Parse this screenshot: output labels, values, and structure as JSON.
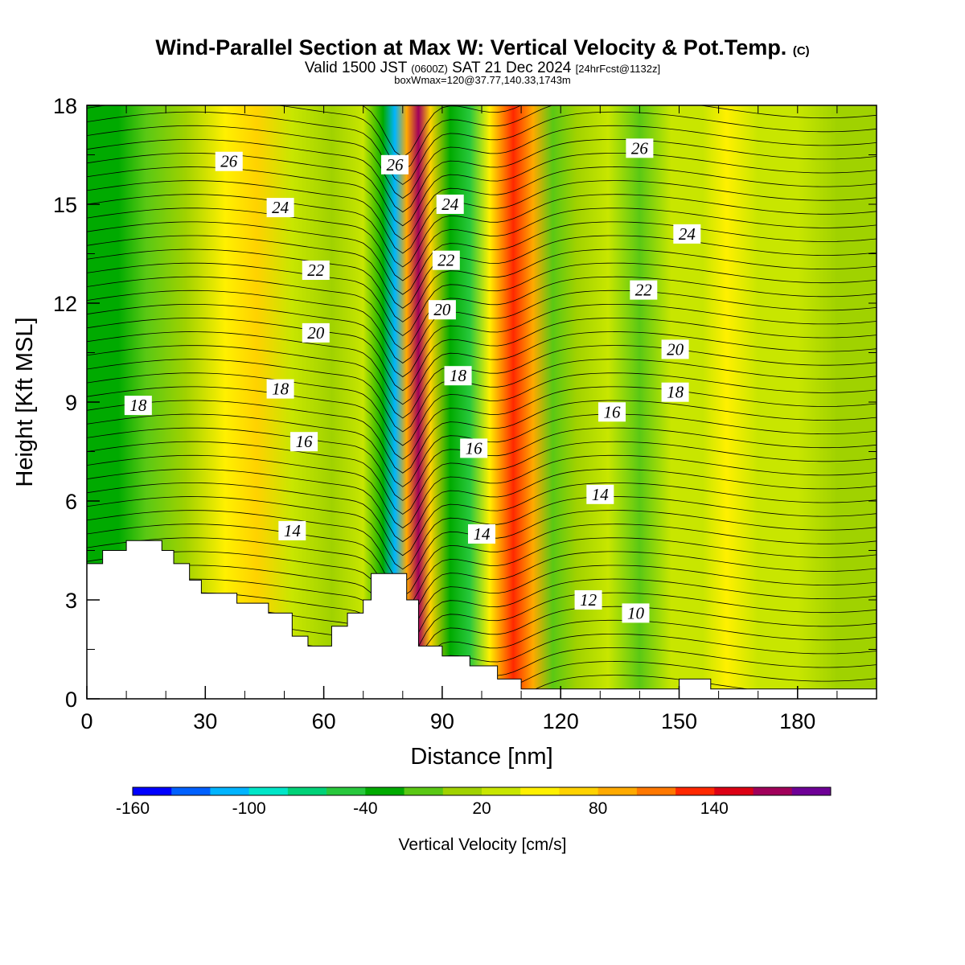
{
  "header": {
    "title": "Wind-Parallel Section at Max W: Vertical Velocity & Pot.Temp.",
    "copyright": "(C)",
    "valid_prefix": "Valid 1500 JST",
    "valid_utc": "(0600Z)",
    "valid_date": "SAT 21 Dec 2024",
    "forecast": "[24hrFcst@1132z]",
    "box_info": "boxWmax=120@37.77,140.33,1743m"
  },
  "chart_data": {
    "type": "heatmap",
    "xlabel": "Distance [nm]",
    "ylabel": "Height [Kft MSL]",
    "xlim": [
      0,
      200
    ],
    "ylim": [
      0,
      18
    ],
    "x_ticks": [
      "0",
      "30",
      "60",
      "90",
      "120",
      "150",
      "180"
    ],
    "y_ticks": [
      "0",
      "3",
      "6",
      "9",
      "12",
      "15",
      "18"
    ],
    "colorbar": {
      "label": "Vertical Velocity [cm/s]",
      "tick_labels": [
        "-160",
        "-100",
        "-40",
        "20",
        "80",
        "140"
      ],
      "colors": [
        "#0000ff",
        "#0060ff",
        "#00b4ff",
        "#00e6c8",
        "#00d278",
        "#28c83c",
        "#00aa00",
        "#5ac814",
        "#a0d200",
        "#c8e600",
        "#fff000",
        "#ffd200",
        "#ffaa00",
        "#ff7800",
        "#ff2800",
        "#dc0014",
        "#a0005a",
        "#6e0096"
      ]
    },
    "vertical_velocity_bands": [
      {
        "x": 0,
        "w": -50
      },
      {
        "x": 8,
        "w": -55
      },
      {
        "x": 15,
        "w": -35
      },
      {
        "x": 25,
        "w": -15
      },
      {
        "x": 35,
        "w": 20
      },
      {
        "x": 43,
        "w": 45
      },
      {
        "x": 52,
        "w": 10
      },
      {
        "x": 62,
        "w": -10
      },
      {
        "x": 70,
        "w": 5
      },
      {
        "x": 75,
        "w": -50
      },
      {
        "x": 78,
        "w": -120
      },
      {
        "x": 81,
        "w": 60
      },
      {
        "x": 84,
        "w": 135
      },
      {
        "x": 87,
        "w": 40
      },
      {
        "x": 92,
        "w": -55
      },
      {
        "x": 97,
        "w": -65
      },
      {
        "x": 102,
        "w": 20
      },
      {
        "x": 108,
        "w": 95
      },
      {
        "x": 113,
        "w": 50
      },
      {
        "x": 118,
        "w": -40
      },
      {
        "x": 124,
        "w": -10
      },
      {
        "x": 132,
        "w": 10
      },
      {
        "x": 140,
        "w": -25
      },
      {
        "x": 148,
        "w": 5
      },
      {
        "x": 156,
        "w": 5
      },
      {
        "x": 162,
        "w": 30
      },
      {
        "x": 170,
        "w": -5
      },
      {
        "x": 180,
        "w": 5
      },
      {
        "x": 190,
        "w": -10
      },
      {
        "x": 200,
        "w": -10
      }
    ],
    "terrain_kft": [
      {
        "x": 0,
        "z": 4.1
      },
      {
        "x": 4,
        "z": 4.5
      },
      {
        "x": 10,
        "z": 4.8
      },
      {
        "x": 19,
        "z": 4.5
      },
      {
        "x": 22,
        "z": 4.1
      },
      {
        "x": 26,
        "z": 3.6
      },
      {
        "x": 29,
        "z": 3.2
      },
      {
        "x": 38,
        "z": 2.9
      },
      {
        "x": 46,
        "z": 2.6
      },
      {
        "x": 52,
        "z": 1.9
      },
      {
        "x": 56,
        "z": 1.6
      },
      {
        "x": 62,
        "z": 2.2
      },
      {
        "x": 66,
        "z": 2.6
      },
      {
        "x": 70,
        "z": 3.0
      },
      {
        "x": 72,
        "z": 3.8
      },
      {
        "x": 81,
        "z": 3.0
      },
      {
        "x": 84,
        "z": 1.6
      },
      {
        "x": 90,
        "z": 1.3
      },
      {
        "x": 97,
        "z": 1.0
      },
      {
        "x": 104,
        "z": 0.6
      },
      {
        "x": 110,
        "z": 0.3
      },
      {
        "x": 150,
        "z": 0.6
      },
      {
        "x": 158,
        "z": 0.3
      },
      {
        "x": 200,
        "z": 0.3
      }
    ],
    "potential_temperature": {
      "levels": [
        10,
        12,
        14,
        16,
        18,
        20,
        22,
        24,
        26
      ],
      "labels": [
        {
          "text": "26",
          "x": 36,
          "z": 16.3
        },
        {
          "text": "24",
          "x": 49,
          "z": 14.9
        },
        {
          "text": "22",
          "x": 58,
          "z": 13.0
        },
        {
          "text": "20",
          "x": 58,
          "z": 11.1
        },
        {
          "text": "18",
          "x": 49,
          "z": 9.4
        },
        {
          "text": "18",
          "x": 13,
          "z": 8.9
        },
        {
          "text": "16",
          "x": 55,
          "z": 7.8
        },
        {
          "text": "14",
          "x": 52,
          "z": 5.1
        },
        {
          "text": "26",
          "x": 78,
          "z": 16.2
        },
        {
          "text": "24",
          "x": 92,
          "z": 15.0
        },
        {
          "text": "22",
          "x": 91,
          "z": 13.3
        },
        {
          "text": "20",
          "x": 90,
          "z": 11.8
        },
        {
          "text": "18",
          "x": 94,
          "z": 9.8
        },
        {
          "text": "16",
          "x": 98,
          "z": 7.6
        },
        {
          "text": "14",
          "x": 100,
          "z": 5.0
        },
        {
          "text": "26",
          "x": 140,
          "z": 16.7
        },
        {
          "text": "24",
          "x": 152,
          "z": 14.1
        },
        {
          "text": "22",
          "x": 141,
          "z": 12.4
        },
        {
          "text": "20",
          "x": 149,
          "z": 10.6
        },
        {
          "text": "18",
          "x": 149,
          "z": 9.3
        },
        {
          "text": "16",
          "x": 133,
          "z": 8.7
        },
        {
          "text": "14",
          "x": 130,
          "z": 6.2
        },
        {
          "text": "12",
          "x": 127,
          "z": 3.0
        },
        {
          "text": "10",
          "x": 139,
          "z": 2.6
        }
      ]
    }
  }
}
